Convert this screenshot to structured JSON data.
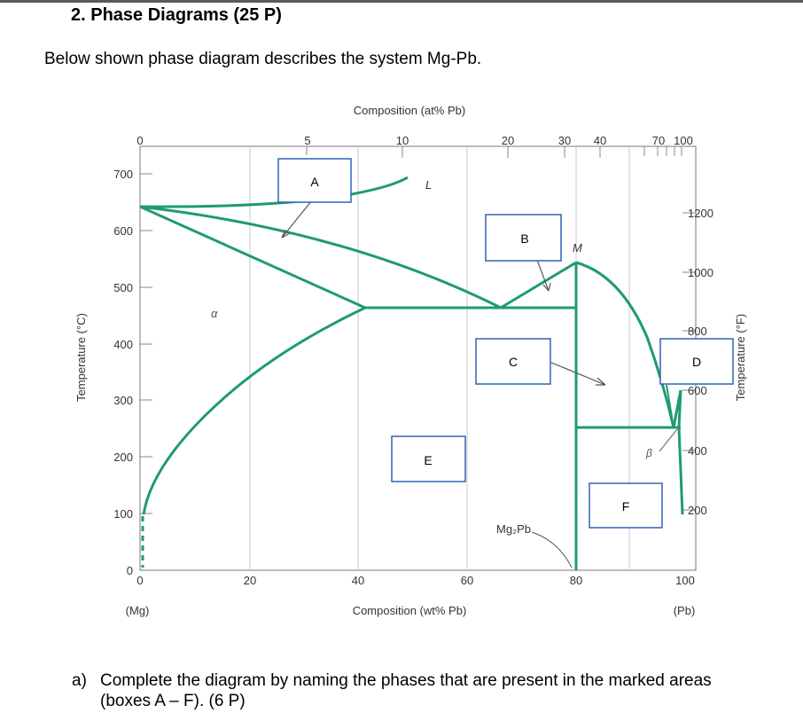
{
  "question_heading": "2. Phase Diagrams (25 P)",
  "intro_text": "Below shown phase diagram describes the system Mg-Pb.",
  "question_a": {
    "label": "a)",
    "text": "Complete the diagram by naming the phases that are present in the marked areas (boxes A – F). (6 P)"
  },
  "diagram": {
    "top_axis_title": "Composition (at% Pb)",
    "top_ticks": [
      "0",
      "5",
      "10",
      "20",
      "30",
      "40",
      "70",
      "100"
    ],
    "bottom_axis_title": "Composition (wt% Pb)",
    "bottom_ticks": [
      "0",
      "20",
      "40",
      "60",
      "80",
      "100"
    ],
    "bottom_left_label": "(Mg)",
    "bottom_right_label": "(Pb)",
    "left_axis_title": "Temperature (°C)",
    "left_ticks": [
      "0",
      "100",
      "200",
      "300",
      "400",
      "500",
      "600",
      "700"
    ],
    "right_axis_title": "Temperature (°F)",
    "right_ticks": [
      "200",
      "400",
      "600",
      "800",
      "1000",
      "1200"
    ],
    "phase_labels": {
      "liquid": "L",
      "alpha": "α",
      "beta": "β",
      "max_point": "M",
      "compound": "Mg₂Pb"
    },
    "boxes": [
      "A",
      "B",
      "C",
      "D",
      "E",
      "F"
    ],
    "line_color": "#1f9a73",
    "box_border_color": "#2f64b5"
  }
}
